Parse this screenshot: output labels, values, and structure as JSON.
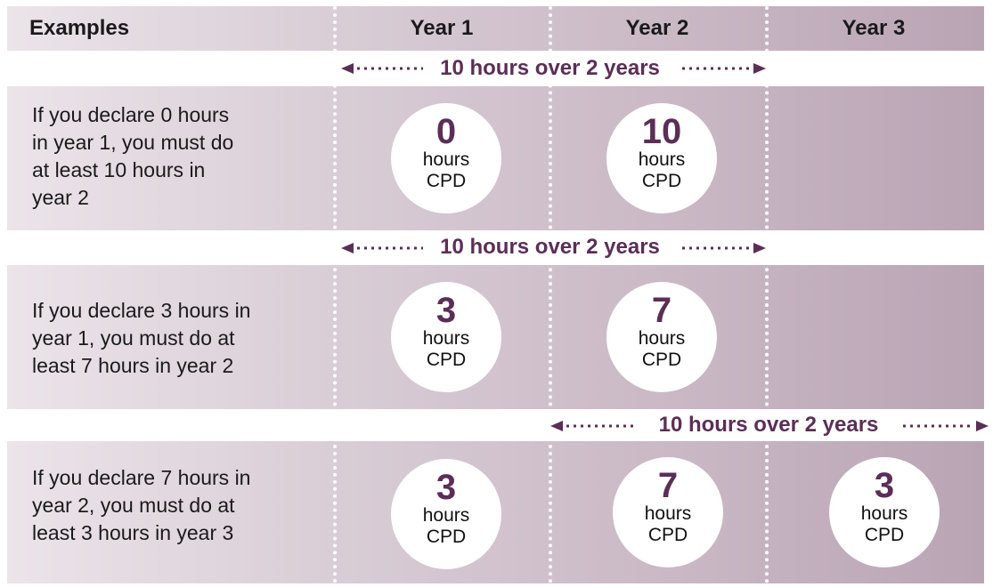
{
  "header": {
    "examples_label": "Examples",
    "years": [
      "Year 1",
      "Year 2",
      "Year 3"
    ]
  },
  "span_label": "10 hours over 2 years",
  "rows": [
    {
      "text": "If you declare 0 hours\nin year 1, you must do\nat least 10 hours in\nyear 2",
      "cells": [
        {
          "year": "Year 1",
          "hours": "0",
          "unit1": "hours",
          "unit2": "CPD"
        },
        {
          "year": "Year 2",
          "hours": "10",
          "unit1": "hours",
          "unit2": "CPD"
        }
      ]
    },
    {
      "text": "If you declare 3 hours in\nyear 1, you must do at\nleast 7 hours in year 2",
      "cells": [
        {
          "year": "Year 1",
          "hours": "3",
          "unit1": "hours",
          "unit2": "CPD"
        },
        {
          "year": "Year 2",
          "hours": "7",
          "unit1": "hours",
          "unit2": "CPD"
        }
      ]
    },
    {
      "text": "If you declare 7 hours in\nyear 2, you must do at\nleast 3 hours in year 3",
      "cells": [
        {
          "year": "Year 1",
          "hours": "3",
          "unit1": "hours",
          "unit2": "CPD"
        },
        {
          "year": "Year 2",
          "hours": "7",
          "unit1": "hours",
          "unit2": "CPD"
        },
        {
          "year": "Year 3",
          "hours": "3",
          "unit1": "hours",
          "unit2": "CPD"
        }
      ]
    }
  ],
  "colors": {
    "accent": "#5b2e57",
    "band_light": "#ebe4e9",
    "band_dark": "#b9a4b4"
  }
}
